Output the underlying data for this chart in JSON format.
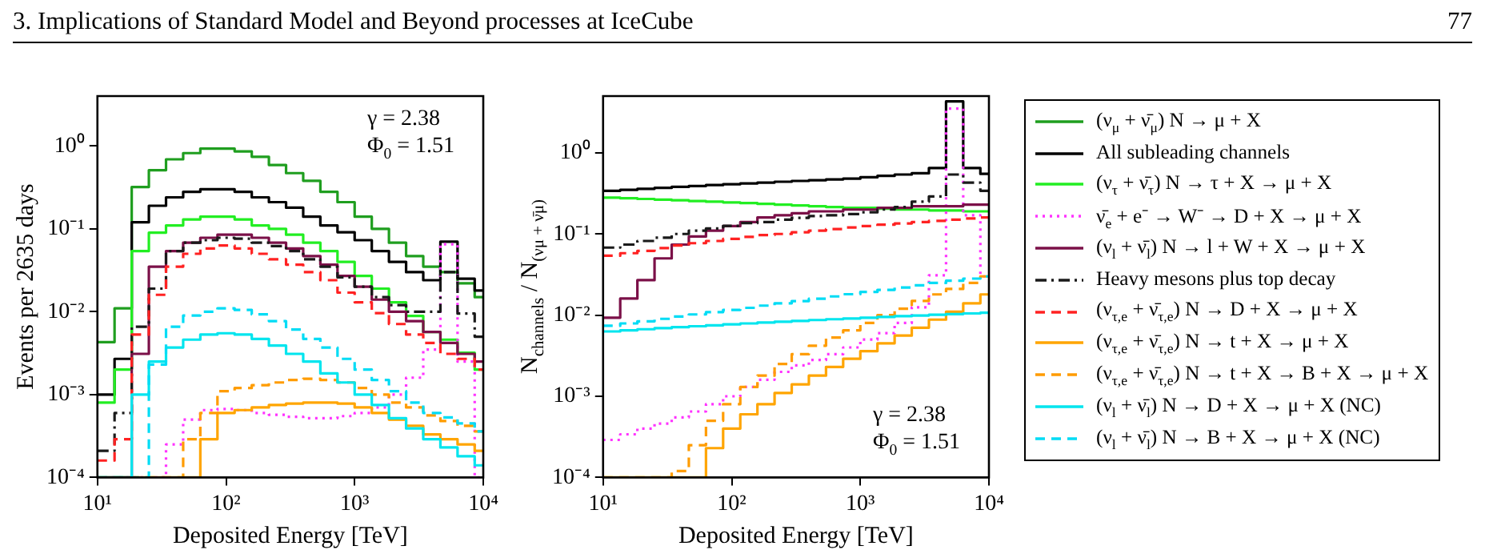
{
  "chart_data": [
    {
      "type": "other",
      "title": "3. Implications of Standard Model and Beyond processes at IceCube",
      "annotations": [
        "77"
      ]
    },
    {
      "type": "histogram",
      "xlabel": "Deposited Energy [TeV]",
      "ylabel": "Events per 2635 days",
      "log": "xy",
      "legend": "right",
      "annotations": [
        "γ = 2.38",
        "Φ$_{0}$ = 1.51"
      ],
      "xlim": [
        10,
        10000
      ],
      "ylim": [
        0.0001,
        4
      ],
      "xticks": [
        {
          "value": 10,
          "label": "10¹"
        },
        {
          "value": 100,
          "label": "10²"
        },
        {
          "value": 1000,
          "label": "10³"
        },
        {
          "value": 10000,
          "label": "10⁴"
        }
      ],
      "yticks": [
        {
          "value": 0.0001,
          "label": "10⁻⁴"
        },
        {
          "value": 0.001,
          "label": "10⁻³"
        },
        {
          "value": 0.01,
          "label": "10⁻²"
        },
        {
          "value": 0.1,
          "label": "10⁻¹"
        },
        {
          "value": 1,
          "label": "10⁰"
        }
      ],
      "bins": [
        10,
        13.59,
        18.48,
        25.12,
        34.15,
        46.42,
        63.1,
        85.77,
        116.6,
        158.5,
        215.4,
        292.9,
        398.1,
        541.2,
        735.6,
        1000,
        1359,
        1848,
        2512,
        3415,
        4642,
        6310,
        8577,
        10000
      ],
      "series": [
        {
          "name": "(ν$_{μ}$ + ν̄$_{μ}$) N → μ + X",
          "color": "#1f9e1f",
          "line_style": "solid",
          "values": [
            0.0043,
            0.011,
            0.32,
            0.51,
            0.69,
            0.82,
            0.93,
            0.93,
            0.86,
            0.74,
            0.59,
            0.47,
            0.38,
            0.28,
            0.21,
            0.14,
            0.1,
            0.068,
            0.047,
            0.035,
            0.03,
            0.022,
            0.015
          ]
        },
        {
          "name": "All subleading channels",
          "color": "#000000",
          "line_style": "solid",
          "values": [
            0.001,
            0.0027,
            0.12,
            0.19,
            0.24,
            0.28,
            0.3,
            0.3,
            0.28,
            0.24,
            0.21,
            0.18,
            0.14,
            0.11,
            0.091,
            0.073,
            0.054,
            0.04,
            0.03,
            0.024,
            0.07,
            0.025,
            0.018
          ]
        },
        {
          "name": "(ν$_{τ}$ + ν̄$_{τ}$) N → τ + X → μ + X",
          "color": "#22ee22",
          "line_style": "solid",
          "values": [
            0.0008,
            0.002,
            0.054,
            0.09,
            0.11,
            0.13,
            0.14,
            0.14,
            0.13,
            0.11,
            0.1,
            0.085,
            0.068,
            0.054,
            0.04,
            0.027,
            0.019,
            0.013,
            0.0089,
            0.0057,
            0.0046,
            0.0032,
            0.002
          ]
        },
        {
          "name": "ν̄$_{e}$ + e⁻ → W⁻ → D + X → μ + X",
          "color": "#ff33ff",
          "line_style": "dotted",
          "values": [
            null,
            null,
            null,
            null,
            0.00025,
            0.0005,
            0.00065,
            0.00067,
            0.00065,
            0.0006,
            0.00057,
            0.00054,
            0.00052,
            0.00052,
            0.00055,
            0.0006,
            0.0007,
            0.001,
            0.0016,
            0.0035,
            0.065,
            0.0025,
            null
          ]
        },
        {
          "name": "(ν$_{l}$ + ν̄$_{l}$) N → l + W + X → μ + X",
          "color": "#7b1048",
          "line_style": "solid",
          "values": [
            null,
            null,
            0.0031,
            0.035,
            0.054,
            0.068,
            0.078,
            0.085,
            0.085,
            0.078,
            0.068,
            0.058,
            0.047,
            0.037,
            0.027,
            0.02,
            0.014,
            0.01,
            0.0077,
            0.0057,
            0.0042,
            0.0031,
            0.0025
          ]
        },
        {
          "name": "Heavy mesons plus top decay",
          "color": "#1a1a1a",
          "line_style": "dashdot",
          "values": [
            0.00021,
            0.0006,
            0.0066,
            0.019,
            0.054,
            0.068,
            0.073,
            0.078,
            0.076,
            0.068,
            0.062,
            0.054,
            0.043,
            0.035,
            0.026,
            0.02,
            0.015,
            0.012,
            0.01,
            0.01,
            0.03,
            0.0095,
            0.005
          ]
        },
        {
          "name": "(ν$_{τ,e}$ + ν̄$_{τ,e}$) N → D + X → μ + X",
          "color": "#ff2222",
          "line_style": "dashed",
          "values": [
            0.00016,
            0.00029,
            0.0053,
            0.016,
            0.035,
            0.05,
            0.058,
            0.063,
            0.058,
            0.05,
            0.043,
            0.037,
            0.03,
            0.024,
            0.017,
            0.013,
            0.0096,
            0.0071,
            0.0053,
            0.0042,
            0.0031,
            0.0027,
            0.002
          ]
        },
        {
          "name": "(ν$_{τ,e}$ + ν̄$_{τ,e}$) N → t + X → μ + X",
          "color": "#ffa500",
          "line_style": "solid",
          "values": [
            null,
            null,
            null,
            null,
            null,
            null,
            0.00029,
            0.0006,
            0.00065,
            0.0007,
            0.00075,
            0.00078,
            0.0008,
            0.0008,
            0.00078,
            0.0007,
            0.0006,
            0.0005,
            0.00042,
            0.00033,
            0.00029,
            0.00025,
            0.00021
          ]
        },
        {
          "name": "(ν$_{τ,e}$ + ν̄$_{τ,e}$) N → t + X → B + X → μ + X",
          "color": "#ff9c00",
          "line_style": "dashed",
          "values": [
            null,
            null,
            null,
            null,
            null,
            0.00029,
            0.0006,
            0.0011,
            0.0012,
            0.0013,
            0.0014,
            0.0015,
            0.00155,
            0.0015,
            0.0014,
            0.0012,
            0.001,
            0.0008,
            0.0007,
            0.00056,
            0.00048,
            0.00042,
            0.00036
          ]
        },
        {
          "name": "(ν$_{l}$ + ν̄$_{l}$) N → D + X → μ + X  (NC)",
          "color": "#00e5ee",
          "line_style": "solid",
          "values": [
            null,
            null,
            0.001,
            0.0025,
            0.0037,
            0.0046,
            0.0053,
            0.0055,
            0.0053,
            0.0047,
            0.0039,
            0.0031,
            0.0025,
            0.0018,
            0.0014,
            0.001,
            0.00075,
            0.00052,
            0.00039,
            0.00029,
            0.00023,
            0.00018,
            0.00014
          ]
        },
        {
          "name": "(ν$_{l}$ + ν̄$_{l}$) N → B + X → μ + X (NC)",
          "color": "#00dcf5",
          "line_style": "dashed",
          "values": [
            null,
            null,
            null,
            0.0023,
            0.0066,
            0.009,
            0.01,
            0.011,
            0.0105,
            0.0093,
            0.0077,
            0.0061,
            0.0047,
            0.0037,
            0.0027,
            0.002,
            0.0015,
            0.0011,
            0.0008,
            0.0006,
            0.00053,
            0.00045,
            0.00036
          ]
        }
      ]
    },
    {
      "type": "histogram",
      "xlabel": "Deposited Energy [TeV]",
      "ylabel": "N$_{channels}$ / N$_{(νμ + ν̄μ)}$",
      "log": "xy",
      "annotations": [
        "γ = 2.38",
        "Φ$_{0}$ = 1.51"
      ],
      "xlim": [
        10,
        10000
      ],
      "ylim": [
        0.0001,
        5
      ],
      "xticks": [
        {
          "value": 10,
          "label": "10¹"
        },
        {
          "value": 100,
          "label": "10²"
        },
        {
          "value": 1000,
          "label": "10³"
        },
        {
          "value": 10000,
          "label": "10⁴"
        }
      ],
      "yticks": [
        {
          "value": 0.0001,
          "label": "10⁻⁴"
        },
        {
          "value": 0.001,
          "label": "10⁻³"
        },
        {
          "value": 0.01,
          "label": "10⁻²"
        },
        {
          "value": 0.1,
          "label": "10⁻¹"
        },
        {
          "value": 1,
          "label": "10⁰"
        }
      ],
      "bins": [
        10,
        13.59,
        18.48,
        25.12,
        34.15,
        46.42,
        63.1,
        85.77,
        116.6,
        158.5,
        215.4,
        292.9,
        398.1,
        541.2,
        735.6,
        1000,
        1359,
        1848,
        2512,
        3415,
        4642,
        6310,
        8577,
        10000
      ],
      "series": [
        {
          "color": "#000000",
          "line_style": "solid",
          "values": [
            0.34,
            0.35,
            0.36,
            0.37,
            0.38,
            0.39,
            0.4,
            0.41,
            0.42,
            0.43,
            0.44,
            0.45,
            0.46,
            0.47,
            0.48,
            0.5,
            0.52,
            0.54,
            0.56,
            0.65,
            4.3,
            0.65,
            0.55
          ]
        },
        {
          "color": "#22ee22",
          "line_style": "solid",
          "values": [
            0.28,
            0.275,
            0.27,
            0.265,
            0.26,
            0.255,
            0.25,
            0.245,
            0.24,
            0.235,
            0.23,
            0.225,
            0.22,
            0.215,
            0.21,
            0.21,
            0.205,
            0.2,
            0.2,
            0.195,
            0.195,
            0.19,
            0.19
          ]
        },
        {
          "color": "#ff33ff",
          "line_style": "dotted",
          "values": [
            0.00029,
            0.00034,
            0.0004,
            0.00046,
            0.00055,
            0.00065,
            0.0008,
            0.001,
            0.0013,
            0.0016,
            0.002,
            0.0024,
            0.0028,
            0.0033,
            0.004,
            0.005,
            0.006,
            0.008,
            0.0125,
            0.031,
            3.5,
            0.17,
            0.03
          ]
        },
        {
          "color": "#7b1048",
          "line_style": "solid",
          "values": [
            0.0093,
            0.016,
            0.027,
            0.05,
            0.074,
            0.093,
            0.11,
            0.125,
            0.14,
            0.16,
            0.17,
            0.18,
            0.19,
            0.19,
            0.2,
            0.2,
            0.21,
            0.21,
            0.22,
            0.22,
            0.22,
            0.23,
            0.23
          ]
        },
        {
          "color": "#1a1a1a",
          "line_style": "dashdot",
          "values": [
            0.068,
            0.074,
            0.082,
            0.09,
            0.1,
            0.11,
            0.117,
            0.126,
            0.136,
            0.14,
            0.15,
            0.158,
            0.166,
            0.17,
            0.176,
            0.185,
            0.2,
            0.215,
            0.25,
            0.29,
            0.54,
            0.43,
            0.34
          ]
        },
        {
          "color": "#ff2222",
          "line_style": "dashed",
          "values": [
            0.054,
            0.058,
            0.062,
            0.067,
            0.072,
            0.077,
            0.082,
            0.087,
            0.092,
            0.097,
            0.1,
            0.105,
            0.11,
            0.115,
            0.12,
            0.125,
            0.13,
            0.135,
            0.14,
            0.145,
            0.15,
            0.155,
            0.16
          ]
        },
        {
          "color": "#ffa500",
          "line_style": "solid",
          "values": [
            null,
            null,
            null,
            null,
            null,
            null,
            0.00023,
            0.0004,
            0.0006,
            0.0008,
            0.0011,
            0.0014,
            0.0018,
            0.0023,
            0.0029,
            0.0036,
            0.0045,
            0.0056,
            0.007,
            0.0088,
            0.011,
            0.014,
            0.018
          ]
        },
        {
          "color": "#ff9c00",
          "line_style": "dashed",
          "values": [
            null,
            null,
            null,
            null,
            0.00012,
            0.00025,
            0.0005,
            0.0008,
            0.0013,
            0.0018,
            0.0025,
            0.0033,
            0.0042,
            0.0053,
            0.0065,
            0.008,
            0.01,
            0.012,
            0.015,
            0.018,
            0.021,
            0.025,
            0.03
          ]
        },
        {
          "color": "#00e5ee",
          "line_style": "solid",
          "values": [
            0.0063,
            0.0065,
            0.0067,
            0.0069,
            0.0071,
            0.0073,
            0.0075,
            0.0077,
            0.0079,
            0.0081,
            0.0083,
            0.0085,
            0.0087,
            0.0089,
            0.0091,
            0.0093,
            0.0095,
            0.0097,
            0.0099,
            0.0101,
            0.0103,
            0.0105,
            0.0107
          ]
        },
        {
          "color": "#00dcf5",
          "line_style": "dashed",
          "values": [
            0.0074,
            0.0079,
            0.0084,
            0.009,
            0.0096,
            0.0102,
            0.0109,
            0.0116,
            0.0123,
            0.0131,
            0.014,
            0.0149,
            0.0159,
            0.017,
            0.0181,
            0.0193,
            0.0205,
            0.0219,
            0.0233,
            0.0249,
            0.0265,
            0.0282,
            0.03
          ]
        }
      ]
    }
  ]
}
